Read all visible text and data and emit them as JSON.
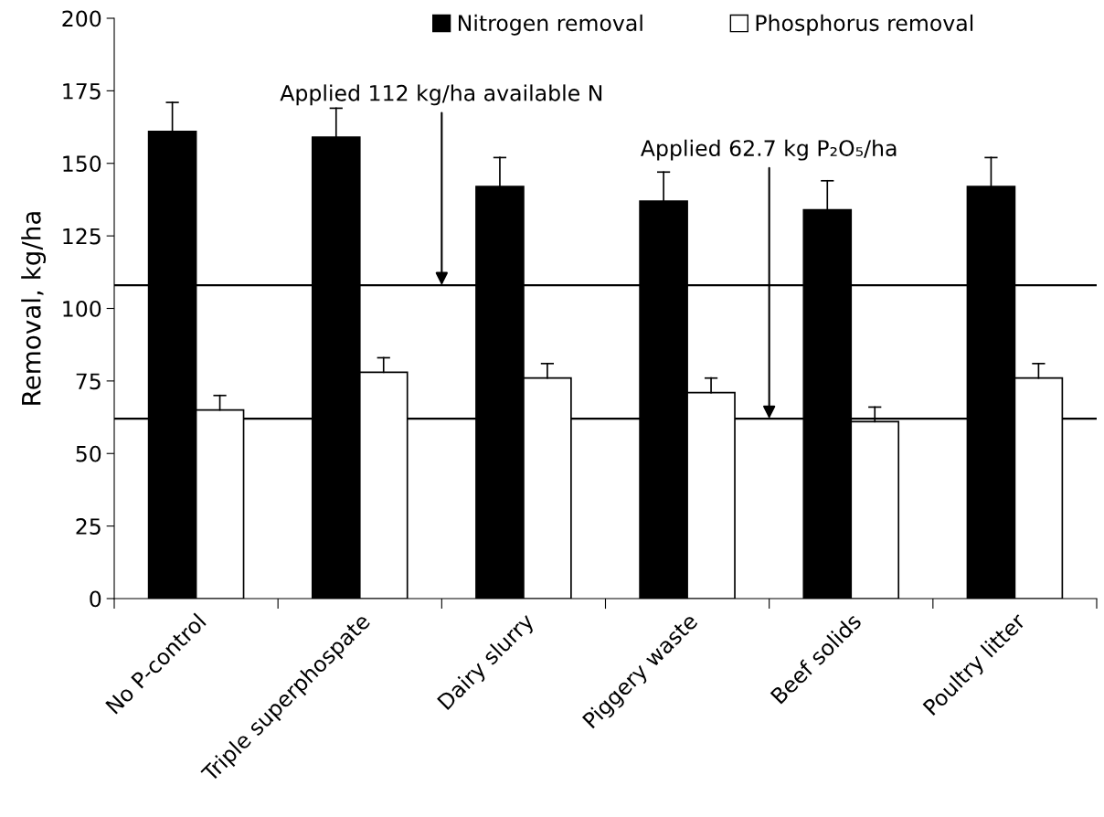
{
  "chart_data": {
    "type": "bar",
    "ylabel": "Removal, kg/ha",
    "categories": [
      "No P-control",
      "Triple superphospate",
      "Dairy slurry",
      "Piggery waste",
      "Beef solids",
      "Poultry litter"
    ],
    "series": [
      {
        "name": "Nitrogen removal",
        "color": "#000000",
        "values": [
          161,
          159,
          142,
          137,
          134,
          142
        ],
        "errors": [
          [
            161,
            171
          ],
          [
            159,
            169
          ],
          [
            142,
            152
          ],
          [
            137,
            147
          ],
          [
            134,
            144
          ],
          [
            142,
            152
          ]
        ]
      },
      {
        "name": "Phosphorus removal",
        "color": "#ffffff",
        "values": [
          65,
          78,
          76,
          71,
          61,
          76
        ],
        "errors": [
          [
            65,
            70
          ],
          [
            78,
            83
          ],
          [
            76,
            81
          ],
          [
            71,
            76
          ],
          [
            61,
            66
          ],
          [
            76,
            81
          ]
        ]
      }
    ],
    "ylim": [
      0,
      200
    ],
    "yticks": [
      0,
      25,
      50,
      75,
      100,
      125,
      150,
      175,
      200
    ],
    "ref_lines": [
      {
        "axis": "y",
        "value": 108,
        "color": "#000000"
      },
      {
        "axis": "y",
        "value": 62,
        "color": "#000000"
      }
    ],
    "annotations": [
      {
        "text": "Applied 112 kg/ha available N",
        "y": 108
      },
      {
        "text": "Applied 62.7 kg P₂O₅/ha",
        "y": 62
      }
    ],
    "grid": false,
    "legend": "top"
  }
}
